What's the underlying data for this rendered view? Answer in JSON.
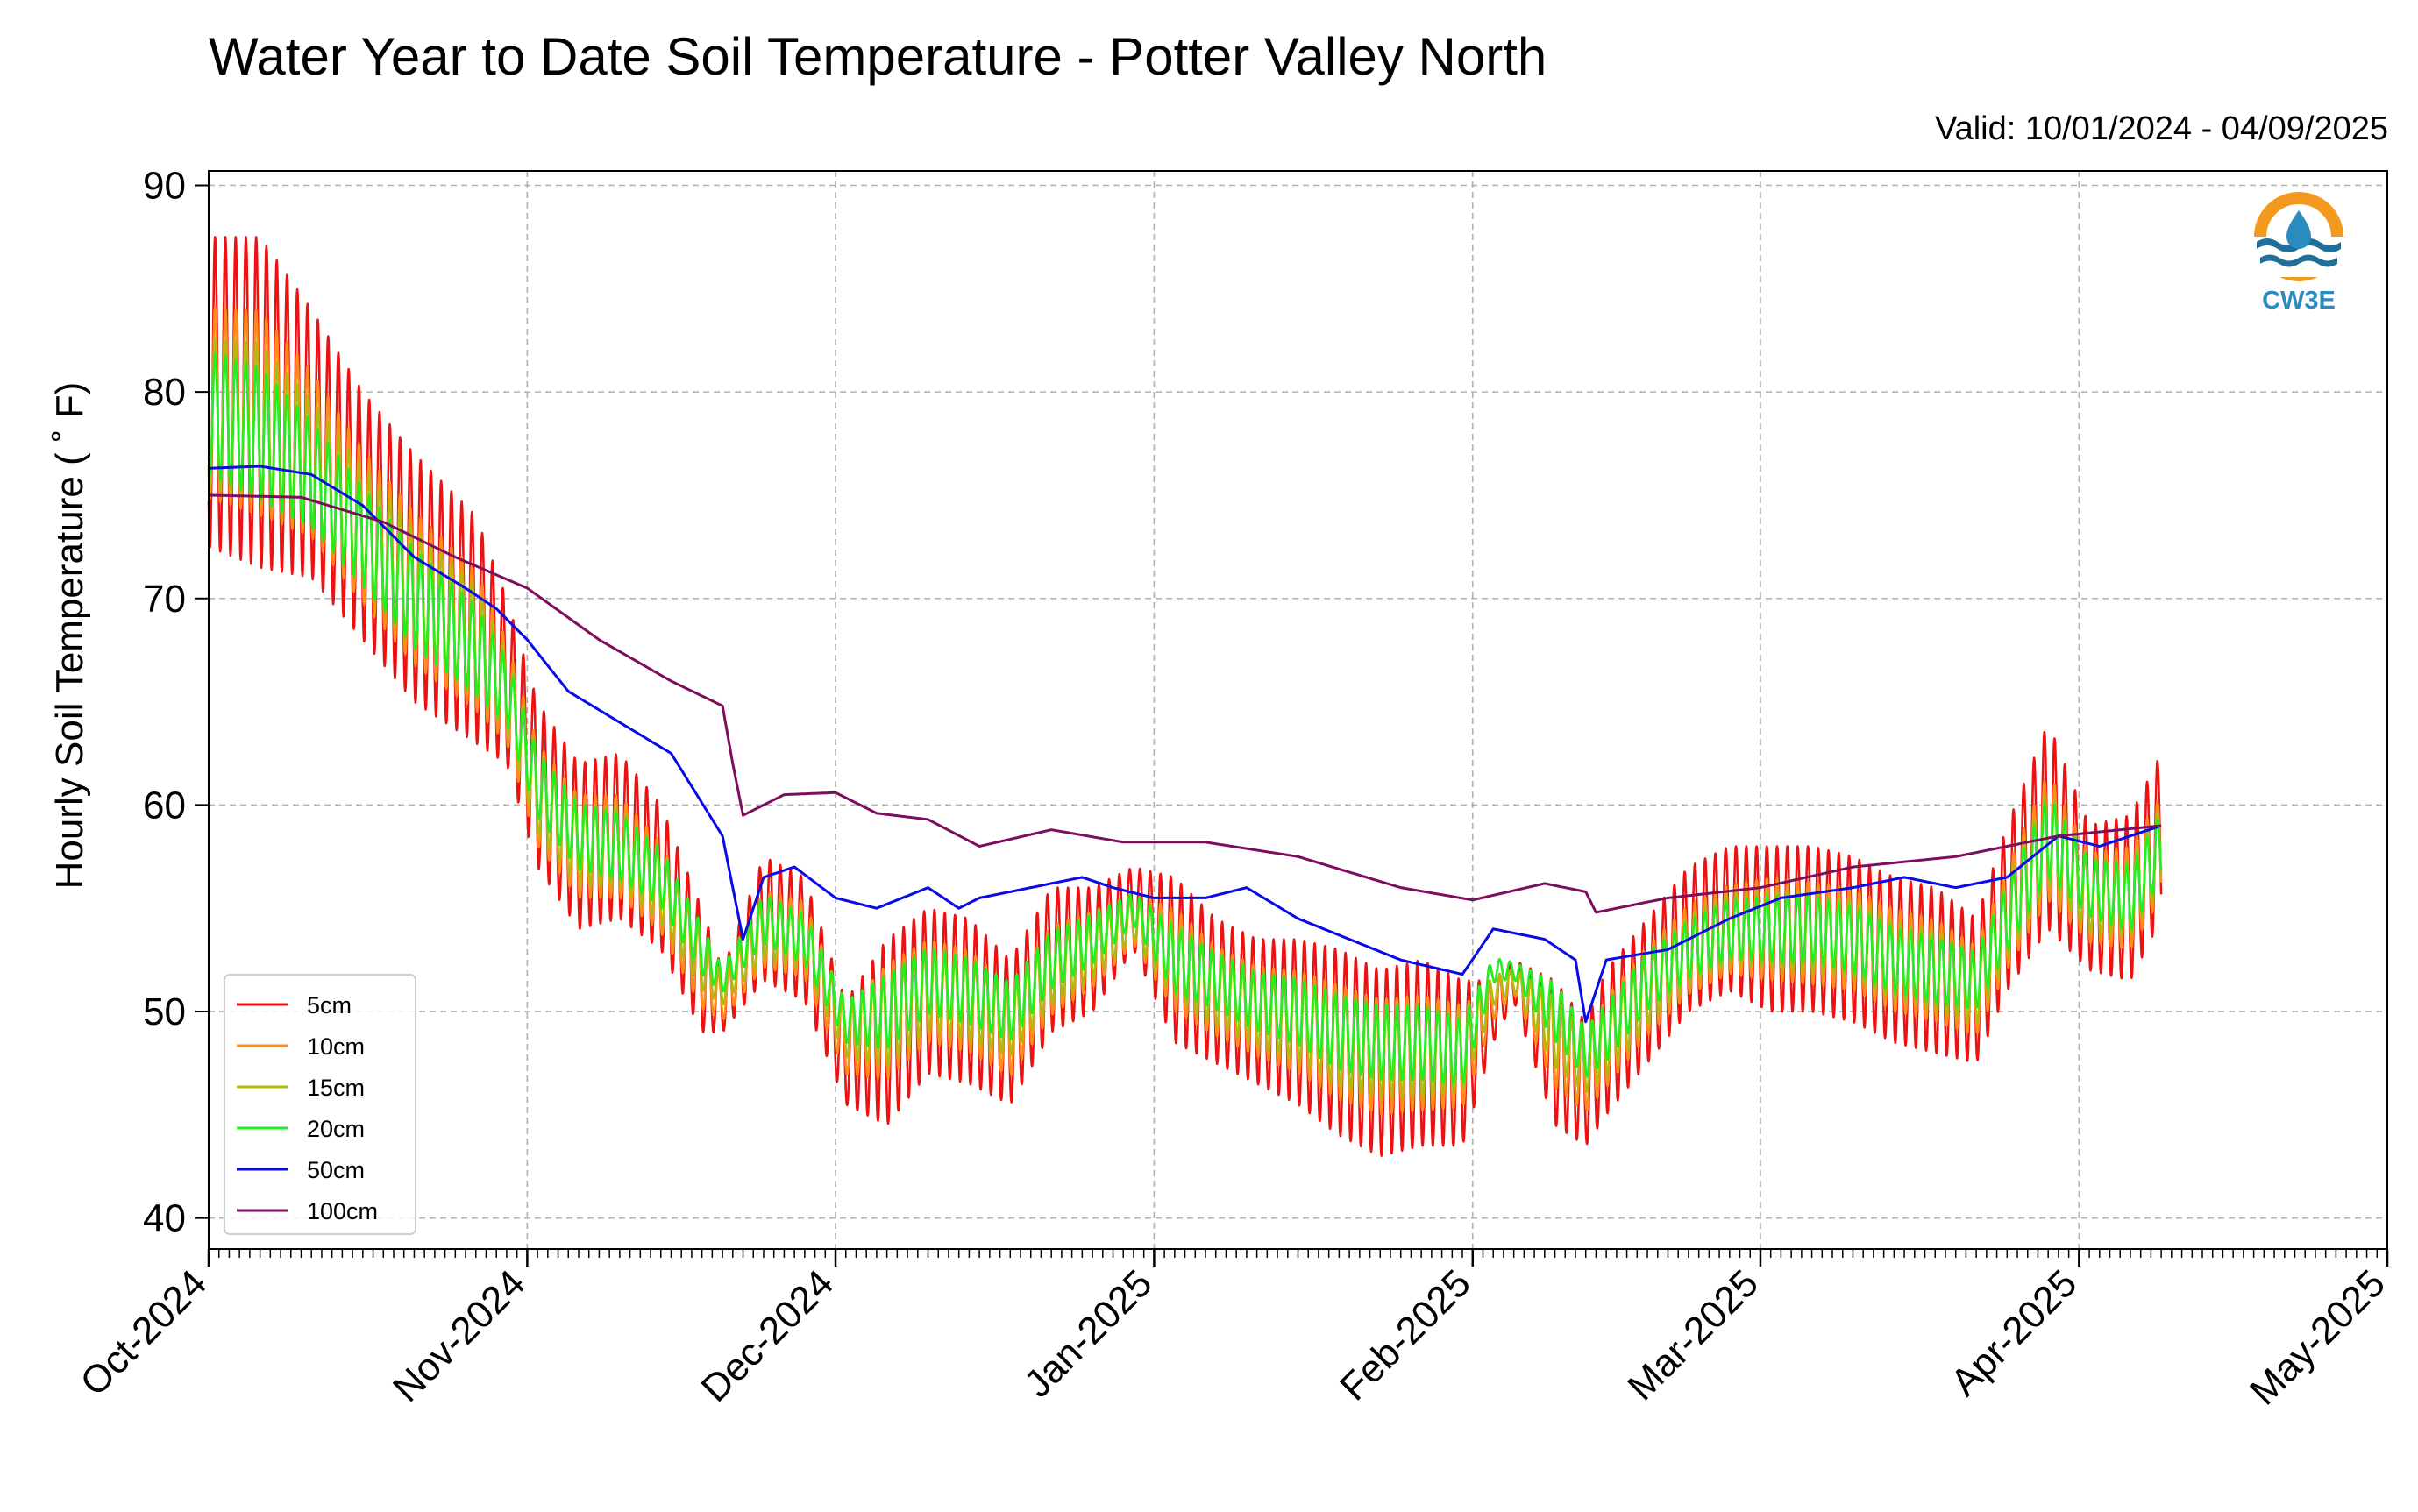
{
  "title": "Water Year to Date Soil Temperature - Potter Valley North",
  "valid_label": "Valid: 10/01/2024 - 04/09/2025",
  "logo": {
    "text": "CW3E",
    "icon": "water-drop-sun-icon",
    "ring_color": "#f39a1e",
    "wave_color": "#1f6f9a",
    "text_color": "#2a8bbf"
  },
  "chart_data": {
    "type": "line",
    "title": "Water Year to Date Soil Temperature - Potter Valley North",
    "xlabel": "",
    "ylabel": "Hourly Soil Temperature ( $^\\circ$F)",
    "ylabel_display": "Hourly Soil Temperature ( ˚ F)",
    "xlim": [
      "2024-10-01",
      "2025-05-01"
    ],
    "ylim": [
      38.5,
      90.7
    ],
    "yticks": [
      40,
      50,
      60,
      70,
      80,
      90
    ],
    "xticks": [
      "2024-10-01",
      "2024-11-01",
      "2024-12-01",
      "2025-01-01",
      "2025-02-01",
      "2025-03-01",
      "2025-04-01",
      "2025-05-01"
    ],
    "xtick_labels": [
      "Oct-2024",
      "Nov-2024",
      "Dec-2024",
      "Jan-2025",
      "Feb-2025",
      "Mar-2025",
      "Apr-2025",
      "May-2025"
    ],
    "grid": true,
    "legend_position": "lower-left",
    "series": [
      {
        "name": "5cm",
        "color": "#ee1111",
        "amplitude_scale": 1.0,
        "dates": [
          "2024-10-01",
          "2024-10-06",
          "2024-10-11",
          "2024-10-16",
          "2024-10-21",
          "2024-10-27",
          "2024-10-30",
          "2024-11-02",
          "2024-11-06",
          "2024-11-10",
          "2024-11-14",
          "2024-11-18",
          "2024-11-20",
          "2024-11-24",
          "2024-11-28",
          "2024-12-02",
          "2024-12-06",
          "2024-12-10",
          "2024-12-14",
          "2024-12-18",
          "2024-12-22",
          "2024-12-26",
          "2024-12-30",
          "2025-01-03",
          "2025-01-07",
          "2025-01-11",
          "2025-01-15",
          "2025-01-19",
          "2025-01-23",
          "2025-01-27",
          "2025-01-31",
          "2025-02-03",
          "2025-02-05",
          "2025-02-09",
          "2025-02-12",
          "2025-02-14",
          "2025-02-18",
          "2025-02-22",
          "2025-02-26",
          "2025-03-02",
          "2025-03-06",
          "2025-03-10",
          "2025-03-14",
          "2025-03-18",
          "2025-03-22",
          "2025-03-25",
          "2025-03-29",
          "2025-04-02",
          "2025-04-06",
          "2025-04-09"
        ],
        "mean": [
          80.0,
          79.5,
          77.5,
          74.0,
          71.0,
          68.5,
          66.0,
          61.0,
          58.0,
          58.5,
          56.5,
          52.0,
          50.5,
          54.5,
          53.5,
          48.0,
          49.0,
          51.0,
          50.5,
          49.0,
          52.5,
          53.0,
          55.0,
          52.5,
          51.0,
          50.0,
          49.5,
          48.5,
          47.5,
          48.0,
          47.5,
          50.0,
          51.5,
          48.0,
          46.5,
          48.5,
          51.0,
          53.5,
          54.5,
          54.0,
          54.0,
          53.5,
          52.5,
          52.0,
          51.0,
          55.0,
          59.0,
          55.5,
          55.5,
          58.5
        ],
        "amplitude": [
          7.5,
          8.0,
          6.5,
          6.0,
          6.0,
          5.5,
          4.0,
          4.0,
          4.0,
          4.0,
          3.5,
          3.0,
          1.5,
          3.0,
          3.0,
          2.5,
          4.5,
          4.0,
          4.0,
          3.5,
          3.5,
          3.0,
          2.0,
          4.0,
          3.5,
          3.5,
          4.0,
          4.5,
          4.5,
          4.5,
          4.0,
          1.5,
          1.0,
          3.5,
          3.0,
          3.5,
          3.5,
          3.5,
          3.5,
          4.0,
          4.0,
          4.0,
          4.0,
          4.0,
          3.5,
          4.0,
          5.0,
          3.5,
          4.0,
          4.0
        ]
      },
      {
        "name": "10cm",
        "color": "#ff8c1a",
        "amplitude_scale": 0.62,
        "dates": [
          "2024-10-01",
          "2024-10-06",
          "2024-10-11",
          "2024-10-16",
          "2024-10-21",
          "2024-10-27",
          "2024-10-30",
          "2024-11-02",
          "2024-11-06",
          "2024-11-10",
          "2024-11-14",
          "2024-11-18",
          "2024-11-20",
          "2024-11-24",
          "2024-11-28",
          "2024-12-02",
          "2024-12-06",
          "2024-12-10",
          "2024-12-14",
          "2024-12-18",
          "2024-12-22",
          "2024-12-26",
          "2024-12-30",
          "2025-01-03",
          "2025-01-07",
          "2025-01-11",
          "2025-01-15",
          "2025-01-19",
          "2025-01-23",
          "2025-01-27",
          "2025-01-31",
          "2025-02-03",
          "2025-02-05",
          "2025-02-09",
          "2025-02-12",
          "2025-02-14",
          "2025-02-18",
          "2025-02-22",
          "2025-02-26",
          "2025-03-02",
          "2025-03-06",
          "2025-03-10",
          "2025-03-14",
          "2025-03-18",
          "2025-03-22",
          "2025-03-25",
          "2025-03-29",
          "2025-04-02",
          "2025-04-06",
          "2025-04-09"
        ],
        "mean": [
          79.5,
          79.0,
          77.0,
          73.5,
          70.5,
          68.0,
          65.5,
          60.5,
          58.0,
          58.0,
          56.0,
          52.0,
          50.5,
          54.0,
          53.5,
          48.5,
          49.5,
          51.0,
          50.5,
          49.0,
          52.0,
          53.0,
          54.5,
          52.5,
          51.0,
          50.0,
          49.5,
          48.5,
          47.8,
          48.0,
          47.8,
          50.5,
          51.5,
          48.5,
          47.0,
          48.5,
          51.0,
          53.0,
          54.0,
          54.0,
          53.8,
          53.5,
          52.5,
          52.0,
          51.0,
          54.5,
          58.5,
          55.5,
          55.5,
          58.0
        ],
        "amplitude": [
          7.5,
          8.0,
          6.5,
          6.0,
          6.0,
          5.5,
          4.0,
          4.0,
          4.0,
          4.0,
          3.5,
          3.0,
          1.5,
          3.0,
          3.0,
          2.5,
          4.5,
          4.0,
          4.0,
          3.5,
          3.5,
          3.0,
          2.0,
          4.0,
          3.5,
          3.5,
          4.0,
          4.5,
          4.5,
          4.5,
          4.0,
          1.5,
          1.0,
          3.5,
          3.0,
          3.5,
          3.5,
          3.5,
          3.5,
          4.0,
          4.0,
          4.0,
          4.0,
          4.0,
          3.5,
          4.0,
          5.0,
          3.5,
          4.0,
          4.0
        ]
      },
      {
        "name": "15cm",
        "color": "#b5b80e",
        "amplitude_scale": 0.48,
        "dates": [
          "2024-10-01",
          "2024-10-06",
          "2024-10-11",
          "2024-10-16",
          "2024-10-21",
          "2024-10-27",
          "2024-10-30",
          "2024-11-02",
          "2024-11-06",
          "2024-11-10",
          "2024-11-14",
          "2024-11-18",
          "2024-11-20",
          "2024-11-24",
          "2024-11-28",
          "2024-12-02",
          "2024-12-06",
          "2024-12-10",
          "2024-12-14",
          "2024-12-18",
          "2024-12-22",
          "2024-12-26",
          "2024-12-30",
          "2025-01-03",
          "2025-01-07",
          "2025-01-11",
          "2025-01-15",
          "2025-01-19",
          "2025-01-23",
          "2025-01-27",
          "2025-01-31",
          "2025-02-03",
          "2025-02-05",
          "2025-02-09",
          "2025-02-12",
          "2025-02-14",
          "2025-02-18",
          "2025-02-22",
          "2025-02-26",
          "2025-03-02",
          "2025-03-06",
          "2025-03-10",
          "2025-03-14",
          "2025-03-18",
          "2025-03-22",
          "2025-03-25",
          "2025-03-29",
          "2025-04-02",
          "2025-04-06",
          "2025-04-09"
        ],
        "mean": [
          79.0,
          78.5,
          76.5,
          73.5,
          70.5,
          68.0,
          65.5,
          60.5,
          58.0,
          58.0,
          56.0,
          52.5,
          51.0,
          54.0,
          53.5,
          49.0,
          49.5,
          51.0,
          50.5,
          49.5,
          52.0,
          53.0,
          54.5,
          52.5,
          51.0,
          50.0,
          49.5,
          48.5,
          48.0,
          48.0,
          48.0,
          51.0,
          51.5,
          49.0,
          47.5,
          48.5,
          51.0,
          53.0,
          54.0,
          54.0,
          53.8,
          53.5,
          52.5,
          52.0,
          51.0,
          54.5,
          58.5,
          55.5,
          55.5,
          58.0
        ],
        "amplitude": [
          7.5,
          8.0,
          6.5,
          6.0,
          6.0,
          5.5,
          4.0,
          4.0,
          4.0,
          4.0,
          3.5,
          3.0,
          1.5,
          3.0,
          3.0,
          2.5,
          4.5,
          4.0,
          4.0,
          3.5,
          3.5,
          3.0,
          2.0,
          4.0,
          3.5,
          3.5,
          4.0,
          4.5,
          4.5,
          4.5,
          4.0,
          1.5,
          1.0,
          3.5,
          3.0,
          3.5,
          3.5,
          3.5,
          3.5,
          4.0,
          4.0,
          4.0,
          4.0,
          4.0,
          3.5,
          4.0,
          5.0,
          3.5,
          4.0,
          4.0
        ]
      },
      {
        "name": "20cm",
        "color": "#22ee22",
        "amplitude_scale": 0.4,
        "dates": [
          "2024-10-01",
          "2024-10-06",
          "2024-10-11",
          "2024-10-16",
          "2024-10-21",
          "2024-10-27",
          "2024-10-30",
          "2024-11-02",
          "2024-11-06",
          "2024-11-10",
          "2024-11-14",
          "2024-11-18",
          "2024-11-20",
          "2024-11-24",
          "2024-11-28",
          "2024-12-02",
          "2024-12-06",
          "2024-12-10",
          "2024-12-14",
          "2024-12-18",
          "2024-12-22",
          "2024-12-26",
          "2024-12-30",
          "2025-01-03",
          "2025-01-07",
          "2025-01-11",
          "2025-01-15",
          "2025-01-19",
          "2025-01-23",
          "2025-01-27",
          "2025-01-31",
          "2025-02-03",
          "2025-02-05",
          "2025-02-09",
          "2025-02-12",
          "2025-02-14",
          "2025-02-18",
          "2025-02-22",
          "2025-02-26",
          "2025-03-02",
          "2025-03-06",
          "2025-03-10",
          "2025-03-14",
          "2025-03-18",
          "2025-03-22",
          "2025-03-25",
          "2025-03-29",
          "2025-04-02",
          "2025-04-06",
          "2025-04-09"
        ],
        "mean": [
          79.0,
          78.0,
          76.0,
          73.0,
          70.0,
          67.5,
          65.5,
          61.0,
          58.5,
          58.0,
          56.5,
          53.0,
          51.5,
          54.5,
          53.5,
          49.5,
          50.0,
          51.5,
          51.0,
          50.0,
          52.5,
          53.5,
          55.0,
          52.5,
          51.5,
          50.5,
          50.0,
          49.0,
          48.5,
          48.5,
          48.0,
          52.0,
          52.0,
          50.0,
          48.0,
          49.0,
          51.5,
          53.0,
          54.0,
          54.0,
          54.0,
          53.5,
          52.5,
          52.0,
          51.5,
          54.5,
          58.5,
          56.0,
          55.5,
          58.0
        ],
        "amplitude": [
          7.5,
          8.0,
          6.5,
          6.0,
          6.0,
          5.5,
          4.0,
          4.0,
          4.0,
          4.0,
          3.5,
          3.0,
          1.5,
          3.0,
          3.0,
          2.5,
          4.5,
          4.0,
          4.0,
          3.5,
          3.5,
          3.0,
          2.0,
          4.0,
          3.5,
          3.5,
          4.0,
          4.5,
          4.5,
          4.5,
          4.0,
          1.5,
          1.0,
          3.5,
          3.0,
          3.5,
          3.5,
          3.5,
          3.5,
          4.0,
          4.0,
          4.0,
          4.0,
          4.0,
          3.5,
          4.0,
          5.0,
          3.5,
          4.0,
          4.0
        ]
      },
      {
        "name": "50cm",
        "color": "#0a0ae6",
        "amplitude_scale": 0,
        "dates": [
          "2024-10-01",
          "2024-10-06",
          "2024-10-11",
          "2024-10-16",
          "2024-10-21",
          "2024-10-26",
          "2024-10-29",
          "2024-11-01",
          "2024-11-05",
          "2024-11-10",
          "2024-11-15",
          "2024-11-20",
          "2024-11-22",
          "2024-11-23",
          "2024-11-24",
          "2024-11-27",
          "2024-12-01",
          "2024-12-05",
          "2024-12-10",
          "2024-12-13",
          "2024-12-15",
          "2024-12-20",
          "2024-12-25",
          "2024-12-28",
          "2025-01-01",
          "2025-01-06",
          "2025-01-10",
          "2025-01-15",
          "2025-01-20",
          "2025-01-25",
          "2025-01-31",
          "2025-02-03",
          "2025-02-08",
          "2025-02-11",
          "2025-02-12",
          "2025-02-14",
          "2025-02-20",
          "2025-02-26",
          "2025-03-03",
          "2025-03-10",
          "2025-03-15",
          "2025-03-20",
          "2025-03-25",
          "2025-03-30",
          "2025-04-03",
          "2025-04-09"
        ],
        "mean": [
          76.3,
          76.4,
          76.0,
          74.5,
          72.0,
          70.5,
          69.5,
          68.0,
          65.5,
          64.0,
          62.5,
          58.5,
          53.5,
          55.0,
          56.5,
          57.0,
          55.5,
          55.0,
          56.0,
          55.0,
          55.5,
          56.0,
          56.5,
          56.0,
          55.5,
          55.5,
          56.0,
          54.5,
          53.5,
          52.5,
          51.8,
          54.0,
          53.5,
          52.5,
          49.5,
          52.5,
          53.0,
          54.5,
          55.5,
          56.0,
          56.5,
          56.0,
          56.5,
          58.5,
          58.0,
          59.0
        ]
      },
      {
        "name": "100cm",
        "color": "#7d0e5e",
        "amplitude_scale": 0,
        "dates": [
          "2024-10-01",
          "2024-10-10",
          "2024-10-18",
          "2024-10-25",
          "2024-11-01",
          "2024-11-08",
          "2024-11-15",
          "2024-11-20",
          "2024-11-21",
          "2024-11-22",
          "2024-11-26",
          "2024-12-01",
          "2024-12-05",
          "2024-12-10",
          "2024-12-15",
          "2024-12-22",
          "2024-12-29",
          "2025-01-06",
          "2025-01-15",
          "2025-01-25",
          "2025-02-01",
          "2025-02-08",
          "2025-02-12",
          "2025-02-13",
          "2025-02-20",
          "2025-03-01",
          "2025-03-10",
          "2025-03-20",
          "2025-03-30",
          "2025-04-09"
        ],
        "mean": [
          75.0,
          74.9,
          73.7,
          72.0,
          70.5,
          68.0,
          66.0,
          64.8,
          62.0,
          59.5,
          60.5,
          60.6,
          59.6,
          59.3,
          58.0,
          58.8,
          58.2,
          58.2,
          57.5,
          56.0,
          55.4,
          56.2,
          55.8,
          54.8,
          55.5,
          56.0,
          57.0,
          57.5,
          58.5,
          59.0
        ]
      }
    ]
  }
}
